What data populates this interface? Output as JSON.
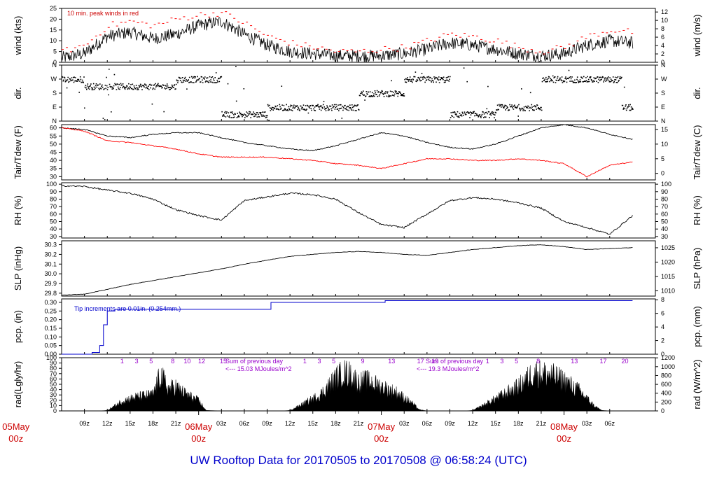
{
  "title": "UW Rooftop Data for 20170505  to  20170508 @ 06:58:24  (UTC)",
  "time_axis": {
    "hour_ticks": [
      "09z",
      "12z",
      "15z",
      "18z",
      "21z",
      "03z",
      "06z",
      "09z",
      "12z",
      "15z",
      "18z",
      "21z",
      "03z",
      "06z",
      "09z",
      "12z",
      "15z",
      "18z",
      "21z",
      "03z",
      "06z"
    ],
    "day_labels": [
      {
        "date": "05May",
        "hour": "00z"
      },
      {
        "date": "06May",
        "hour": "00z"
      },
      {
        "date": "07May",
        "hour": "00z"
      },
      {
        "date": "08May",
        "hour": "00z"
      }
    ]
  },
  "chart_data": [
    {
      "type": "line",
      "panel": "wind",
      "ylabel": "wind (kts)",
      "ylabel_right": "wind (m/s)",
      "yticks": [
        0,
        5,
        10,
        15,
        20,
        25
      ],
      "yticks_right": [
        0,
        2,
        4,
        6,
        8,
        10,
        12
      ],
      "ylim": [
        0,
        25
      ],
      "annotation": "10 min. peak winds in red",
      "series": [
        {
          "color": "#000000",
          "x": [
            6,
            9,
            12,
            15,
            18,
            21,
            24,
            27,
            30,
            33,
            36,
            39,
            42,
            45,
            48,
            51,
            54,
            57,
            60,
            63,
            66,
            69,
            72,
            75,
            78,
            81
          ],
          "y": [
            2,
            4,
            12,
            14,
            11,
            13,
            17,
            19,
            13,
            8,
            5,
            4,
            3,
            3,
            3,
            4,
            6,
            9,
            8,
            6,
            4,
            3,
            4,
            8,
            10,
            9
          ]
        },
        {
          "color": "#ff0000",
          "x": [
            6,
            9,
            12,
            15,
            18,
            21,
            24,
            27,
            30,
            33,
            36,
            39,
            42,
            45,
            48,
            51,
            54,
            57,
            60,
            63,
            66,
            69,
            72,
            75,
            78,
            81
          ],
          "y": [
            5,
            8,
            17,
            19,
            17,
            20,
            22,
            23,
            18,
            12,
            9,
            7,
            5,
            5,
            6,
            7,
            10,
            13,
            12,
            10,
            7,
            5,
            7,
            12,
            15,
            14
          ]
        }
      ]
    },
    {
      "type": "scatter",
      "panel": "dir",
      "ylabel": "dir.",
      "yticks": [
        "N",
        "E",
        "S",
        "W",
        "N"
      ],
      "description_values": [
        {
          "x": 6,
          "dir": "W"
        },
        {
          "x": 12,
          "dir": "SW"
        },
        {
          "x": 18,
          "dir": "SW"
        },
        {
          "x": 24,
          "dir": "W"
        },
        {
          "x": 30,
          "dir": "NE"
        },
        {
          "x": 36,
          "dir": "E"
        },
        {
          "x": 42,
          "dir": "E"
        },
        {
          "x": 48,
          "dir": "S"
        },
        {
          "x": 54,
          "dir": "W"
        },
        {
          "x": 60,
          "dir": "NE"
        },
        {
          "x": 66,
          "dir": "E"
        },
        {
          "x": 72,
          "dir": "W"
        },
        {
          "x": 78,
          "dir": "W"
        },
        {
          "x": 81,
          "dir": "E"
        }
      ]
    },
    {
      "type": "line",
      "panel": "tair",
      "ylabel": "Tair/Tdew (F)",
      "ylabel_right": "Tair/Tdew (C)",
      "yticks": [
        30,
        35,
        40,
        45,
        50,
        55,
        60
      ],
      "yticks_right": [
        0,
        5,
        10,
        15
      ],
      "ylim": [
        28,
        62
      ],
      "series": [
        {
          "name": "Tair",
          "color": "#000000",
          "x": [
            6,
            9,
            12,
            15,
            18,
            21,
            24,
            27,
            30,
            33,
            36,
            39,
            42,
            45,
            48,
            51,
            54,
            57,
            60,
            63,
            66,
            69,
            72,
            75,
            78,
            81
          ],
          "y": [
            60,
            59,
            55,
            54,
            56,
            57,
            57,
            54,
            51,
            49,
            47,
            46,
            49,
            53,
            57,
            55,
            51,
            48,
            47,
            50,
            55,
            60,
            62,
            60,
            56,
            53
          ]
        },
        {
          "name": "Tdew",
          "color": "#ff0000",
          "x": [
            6,
            9,
            12,
            15,
            18,
            21,
            24,
            27,
            30,
            33,
            36,
            39,
            42,
            45,
            48,
            51,
            54,
            57,
            60,
            63,
            66,
            69,
            72,
            75,
            78,
            81
          ],
          "y": [
            60,
            58,
            52,
            51,
            49,
            47,
            44,
            42,
            42,
            42,
            41,
            40,
            38,
            37,
            35,
            38,
            41,
            41,
            40,
            40,
            41,
            40,
            38,
            30,
            37,
            39
          ]
        }
      ]
    },
    {
      "type": "line",
      "panel": "rh",
      "ylabel": "RH (%)",
      "ylabel_right": "RH (%)",
      "yticks": [
        30,
        40,
        50,
        60,
        70,
        80,
        90,
        100
      ],
      "ylim": [
        28,
        102
      ],
      "series": [
        {
          "color": "#000000",
          "x": [
            6,
            9,
            12,
            15,
            18,
            21,
            24,
            27,
            30,
            33,
            36,
            39,
            42,
            45,
            48,
            51,
            54,
            57,
            60,
            63,
            66,
            69,
            72,
            75,
            78,
            81
          ],
          "y": [
            98,
            97,
            92,
            88,
            80,
            66,
            58,
            52,
            78,
            83,
            88,
            86,
            80,
            62,
            46,
            42,
            60,
            78,
            82,
            80,
            75,
            68,
            50,
            42,
            33,
            58
          ]
        }
      ]
    },
    {
      "type": "line",
      "panel": "slp",
      "ylabel": "SLP (inHg)",
      "ylabel_right": "SLP (hPa)",
      "yticks": [
        29.8,
        29.9,
        30.0,
        30.1,
        30.2,
        30.3
      ],
      "yticks_right": [
        1010,
        1015,
        1020,
        1025
      ],
      "ylim": [
        29.77,
        30.34
      ],
      "series": [
        {
          "color": "#000000",
          "x": [
            6,
            9,
            12,
            15,
            18,
            21,
            24,
            27,
            30,
            33,
            36,
            39,
            42,
            45,
            48,
            51,
            54,
            57,
            60,
            63,
            66,
            69,
            72,
            75,
            78,
            81
          ],
          "y": [
            29.78,
            29.79,
            29.84,
            29.89,
            29.93,
            29.97,
            30.01,
            30.05,
            30.1,
            30.14,
            30.18,
            30.2,
            30.22,
            30.23,
            30.22,
            30.2,
            30.19,
            30.22,
            30.25,
            30.27,
            30.29,
            30.3,
            30.28,
            30.25,
            30.26,
            30.27
          ]
        }
      ]
    },
    {
      "type": "line",
      "panel": "pcp",
      "ylabel": "pcp. (in)",
      "ylabel_right": "pcp. (mm)",
      "yticks": [
        0,
        0.05,
        0.1,
        0.15,
        0.2,
        0.25,
        0.3
      ],
      "yticks_right": [
        0,
        2,
        4,
        6,
        8
      ],
      "ylim": [
        0,
        0.32
      ],
      "annotation": "Tip increments are 0.01in. (0.254mm.)",
      "series": [
        {
          "color": "#0000cc",
          "x": [
            6,
            9,
            10,
            11,
            11.5,
            12,
            13,
            20,
            27,
            33,
            33.5,
            36,
            42,
            48,
            48.5,
            60,
            81
          ],
          "y": [
            0,
            0,
            0.01,
            0.05,
            0.17,
            0.25,
            0.26,
            0.26,
            0.26,
            0.26,
            0.3,
            0.3,
            0.3,
            0.3,
            0.31,
            0.31,
            0.31
          ]
        }
      ]
    },
    {
      "type": "area",
      "panel": "rad",
      "ylabel": "rad(Lgly/hr)",
      "ylabel_right": "rad (W/m^2)",
      "yticks": [
        0,
        10,
        20,
        30,
        40,
        50,
        60,
        70,
        80,
        90,
        100
      ],
      "yticks_right": [
        0,
        200,
        400,
        600,
        800,
        1000,
        1200
      ],
      "ylim": [
        0,
        100
      ],
      "annotations": [
        {
          "text": "Sum of previous day",
          "color": "#9900cc"
        },
        {
          "text": "<--- 15.03 MJoules/m^2",
          "color": "#9900cc"
        },
        {
          "text": "Sum of previous day",
          "color": "#9900cc"
        },
        {
          "text": "<--- 19.3 MJoules/m^2",
          "color": "#9900cc"
        }
      ],
      "hour_marks": [
        {
          "day": 1,
          "labels": [
            "1",
            "3",
            "5",
            "8",
            "10",
            "12",
            "15"
          ]
        },
        {
          "day": 2,
          "labels": [
            "1",
            "3",
            "5",
            "9",
            "13",
            "17",
            "19"
          ]
        },
        {
          "day": 3,
          "labels": [
            "1",
            "3",
            "5",
            "8",
            "13",
            "17",
            "20"
          ]
        }
      ],
      "series": [
        {
          "color": "#000000",
          "x": [
            11,
            12,
            14,
            16,
            18,
            19,
            20,
            21,
            22,
            24,
            25,
            27,
            28,
            35,
            36,
            38,
            40,
            42,
            43,
            44,
            45,
            46,
            48,
            50,
            52,
            53,
            54,
            59,
            60,
            62,
            64,
            66,
            68,
            70,
            72,
            74,
            76,
            77,
            78
          ],
          "y": [
            0,
            1,
            25,
            35,
            40,
            90,
            55,
            60,
            45,
            25,
            1,
            0,
            0,
            0,
            1,
            20,
            40,
            80,
            95,
            90,
            70,
            75,
            60,
            45,
            20,
            3,
            0,
            0,
            1,
            20,
            40,
            60,
            95,
            90,
            75,
            50,
            12,
            1,
            0
          ]
        }
      ]
    }
  ]
}
